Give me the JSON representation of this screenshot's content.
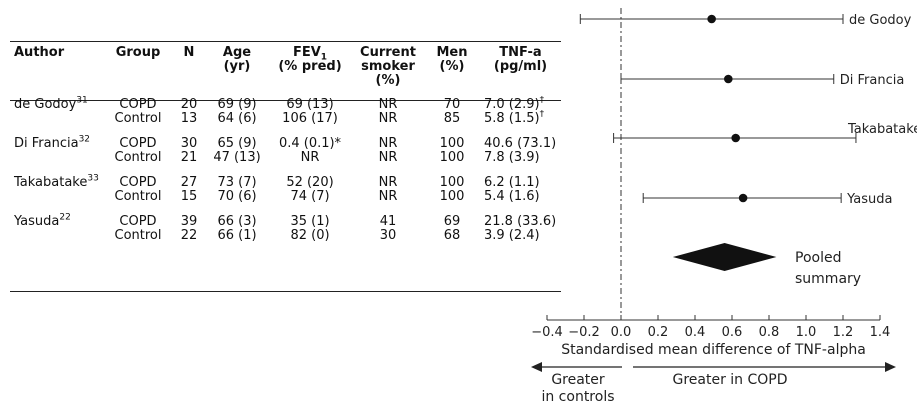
{
  "table": {
    "headers": {
      "author": "Author",
      "group": "Group",
      "n": "N",
      "age": [
        "Age",
        "(yr)"
      ],
      "fev": {
        "main": "FEV",
        "sub": "1",
        "line2": "(% pred)"
      },
      "smoker": [
        "Current",
        "smoker",
        "(%)"
      ],
      "men": [
        "Men",
        "(%)"
      ],
      "tnf": [
        "TNF-a",
        "(pg/ml)"
      ]
    },
    "studies": [
      {
        "author": "de Godoy",
        "ref": "31",
        "rows": [
          {
            "group": "COPD",
            "n": "20",
            "age": "69 (9)",
            "fev": "69 (13)",
            "smoker": "NR",
            "men": "70",
            "tnf": "7.0 (2.9)",
            "tnf_mark": "†"
          },
          {
            "group": "Control",
            "n": "13",
            "age": "64 (6)",
            "fev": "106 (17)",
            "smoker": "NR",
            "men": "85",
            "tnf": "5.8 (1.5)",
            "tnf_mark": "†"
          }
        ]
      },
      {
        "author": "Di Francia",
        "ref": "32",
        "rows": [
          {
            "group": "COPD",
            "n": "30",
            "age": "65 (9)",
            "fev": "0.4 (0.1)*",
            "smoker": "NR",
            "men": "100",
            "tnf": "40.6 (73.1)",
            "tnf_mark": ""
          },
          {
            "group": "Control",
            "n": "21",
            "age": "47 (13)",
            "fev": "NR",
            "smoker": "NR",
            "men": "100",
            "tnf": "7.8 (3.9)",
            "tnf_mark": ""
          }
        ]
      },
      {
        "author": "Takabatake",
        "ref": "33",
        "rows": [
          {
            "group": "COPD",
            "n": "27",
            "age": "73 (7)",
            "fev": "52 (20)",
            "smoker": "NR",
            "men": "100",
            "tnf": "6.2 (1.1)",
            "tnf_mark": ""
          },
          {
            "group": "Control",
            "n": "15",
            "age": "70 (6)",
            "fev": "74 (7)",
            "smoker": "NR",
            "men": "100",
            "tnf": "5.4 (1.6)",
            "tnf_mark": ""
          }
        ]
      },
      {
        "author": "Yasuda",
        "ref": "22",
        "rows": [
          {
            "group": "COPD",
            "n": "39",
            "age": "66 (3)",
            "fev": "35 (1)",
            "smoker": "41",
            "men": "69",
            "tnf": "21.8 (33.6)",
            "tnf_mark": ""
          },
          {
            "group": "Control",
            "n": "22",
            "age": "66 (1)",
            "fev": "82 (0)",
            "smoker": "30",
            "men": "68",
            "tnf": "3.9 (2.4)",
            "tnf_mark": ""
          }
        ]
      }
    ]
  },
  "chart_data": {
    "type": "scatter",
    "subtype": "forest-plot",
    "xlabel": "Standardised mean difference of TNF-alpha",
    "xlim": [
      -0.4,
      1.4
    ],
    "xticks": [
      -0.4,
      -0.2,
      0.0,
      0.2,
      0.4,
      0.6,
      0.8,
      1.0,
      1.2,
      1.4
    ],
    "xtick_labels": [
      "−0.4",
      "−0.2",
      "0.0",
      "0.2",
      "0.4",
      "0.6",
      "0.8",
      "1.0",
      "1.2",
      "1.4"
    ],
    "reference_line_x": 0.0,
    "series": [
      {
        "name": "de Godoy",
        "estimate": 0.49,
        "ci": [
          -0.22,
          1.2
        ]
      },
      {
        "name": "Di Francia",
        "estimate": 0.58,
        "ci": [
          0.0,
          1.15
        ]
      },
      {
        "name": "Takabatake",
        "estimate": 0.62,
        "ci": [
          -0.04,
          1.27
        ]
      },
      {
        "name": "Yasuda",
        "estimate": 0.66,
        "ci": [
          0.12,
          1.19
        ]
      }
    ],
    "pooled": {
      "label_lines": [
        "Pooled",
        "summary"
      ],
      "estimate": 0.56,
      "ci": [
        0.28,
        0.84
      ]
    },
    "direction_left": [
      "Greater",
      "in controls"
    ],
    "direction_right": "Greater in COPD"
  }
}
